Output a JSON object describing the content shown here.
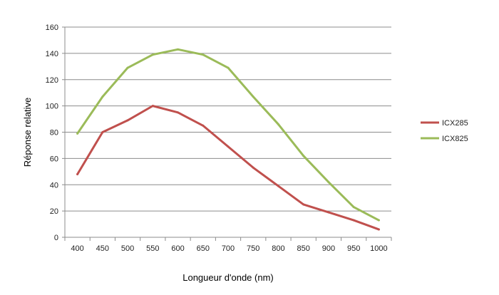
{
  "chart_data": {
    "type": "line",
    "title": "",
    "xlabel": "Longueur d'onde (nm)",
    "ylabel": "Réponse relative",
    "x": [
      400,
      450,
      500,
      550,
      600,
      650,
      700,
      750,
      800,
      850,
      900,
      950,
      1000
    ],
    "ylim": [
      0,
      160
    ],
    "yticks": [
      0,
      20,
      40,
      60,
      80,
      100,
      120,
      140,
      160
    ],
    "grid": true,
    "legend_position": "right",
    "series": [
      {
        "name": "ICX285",
        "color": "#c0504d",
        "values": [
          48,
          80,
          89,
          100,
          95,
          85,
          69,
          53,
          39,
          25,
          19,
          13,
          6
        ]
      },
      {
        "name": "ICX825",
        "color": "#9bbb59",
        "values": [
          79,
          107,
          129,
          139,
          143,
          139,
          129,
          107,
          86,
          62,
          42,
          23,
          13
        ]
      }
    ]
  }
}
